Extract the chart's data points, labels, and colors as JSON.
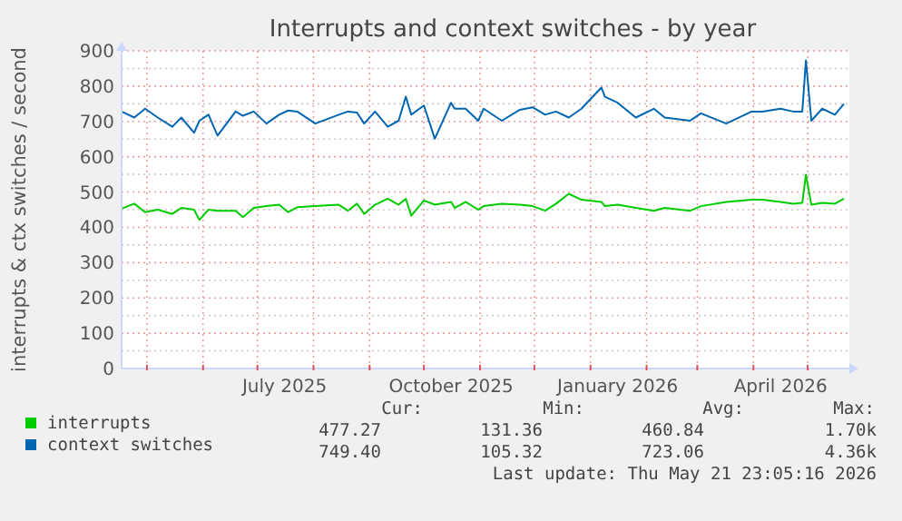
{
  "chart_data": {
    "type": "line",
    "title": "Interrupts and context switches - by year",
    "ylabel": "interrupts & ctx switches / second",
    "x": [
      "2025-04-17",
      "2025-04-24",
      "2025-04-30",
      "2025-05-07",
      "2025-05-15",
      "2025-05-20",
      "2025-05-27",
      "2025-05-30",
      "2025-06-04",
      "2025-06-09",
      "2025-06-19",
      "2025-06-23",
      "2025-06-29",
      "2025-07-06",
      "2025-07-13",
      "2025-07-18",
      "2025-07-23",
      "2025-08-02",
      "2025-08-15",
      "2025-08-20",
      "2025-08-25",
      "2025-08-29",
      "2025-09-04",
      "2025-09-11",
      "2025-09-17",
      "2025-09-21",
      "2025-09-24",
      "2025-10-01",
      "2025-10-07",
      "2025-10-16",
      "2025-10-18",
      "2025-10-24",
      "2025-10-31",
      "2025-11-03",
      "2025-11-13",
      "2025-11-23",
      "2025-11-30",
      "2025-12-07",
      "2025-12-13",
      "2025-12-20",
      "2025-12-27",
      "2026-01-07",
      "2026-01-09",
      "2026-01-16",
      "2026-01-26",
      "2026-02-05",
      "2026-02-11",
      "2026-02-25",
      "2026-03-03",
      "2026-03-17",
      "2026-03-31",
      "2026-04-06",
      "2026-04-16",
      "2026-04-23",
      "2026-04-28",
      "2026-04-30",
      "2026-05-03",
      "2026-05-09",
      "2026-05-16",
      "2026-05-21"
    ],
    "series": [
      {
        "name": "interrupts",
        "color": "#00cc00",
        "values": [
          453,
          467,
          443,
          450,
          438,
          455,
          450,
          421,
          450,
          447,
          447,
          429,
          455,
          460,
          464,
          443,
          457,
          460,
          464,
          447,
          467,
          438,
          464,
          481,
          464,
          481,
          433,
          476,
          464,
          472,
          455,
          472,
          450,
          460,
          467,
          464,
          460,
          447,
          467,
          495,
          478,
          472,
          460,
          464,
          455,
          447,
          455,
          447,
          460,
          472,
          478,
          478,
          472,
          467,
          469,
          549,
          464,
          469,
          467,
          481
        ]
      },
      {
        "name": "context switches",
        "color": "#0066b3",
        "values": [
          728,
          711,
          736,
          711,
          685,
          711,
          668,
          702,
          719,
          660,
          728,
          716,
          728,
          694,
          719,
          731,
          728,
          694,
          719,
          728,
          725,
          694,
          728,
          685,
          702,
          770,
          719,
          745,
          651,
          753,
          736,
          736,
          702,
          736,
          702,
          733,
          740,
          719,
          728,
          711,
          736,
          796,
          770,
          753,
          711,
          736,
          711,
          702,
          723,
          694,
          728,
          728,
          736,
          728,
          728,
          873,
          702,
          736,
          719,
          750
        ]
      }
    ],
    "xlim": [
      "2025-04-17",
      "2026-05-24"
    ],
    "xticks": [
      {
        "value": "2025-05-01",
        "label": null
      },
      {
        "value": "2025-06-01",
        "label": null
      },
      {
        "value": "2025-07-01",
        "label": null
      },
      {
        "value": "2025-07-16",
        "label": "July 2025"
      },
      {
        "value": "2025-08-01",
        "label": null
      },
      {
        "value": "2025-09-01",
        "label": null
      },
      {
        "value": "2025-10-01",
        "label": null
      },
      {
        "value": "2025-10-16",
        "label": "October 2025"
      },
      {
        "value": "2025-11-01",
        "label": null
      },
      {
        "value": "2025-12-01",
        "label": null
      },
      {
        "value": "2026-01-01",
        "label": null
      },
      {
        "value": "2026-01-16",
        "label": "January 2026"
      },
      {
        "value": "2026-02-01",
        "label": null
      },
      {
        "value": "2026-03-01",
        "label": null
      },
      {
        "value": "2026-04-01",
        "label": null
      },
      {
        "value": "2026-04-16",
        "label": "April 2026"
      },
      {
        "value": "2026-05-01",
        "label": null
      }
    ],
    "ylim": [
      0,
      900
    ],
    "yticks": [
      0,
      100,
      200,
      300,
      400,
      500,
      600,
      700,
      800,
      900
    ],
    "grid": true,
    "legend": "bottom",
    "line_style": "solid",
    "annotations": [
      "Cur:",
      "Min:",
      "Avg:",
      "Max:",
      "477.27",
      "131.36",
      "460.84",
      "1.70k",
      "749.40",
      "105.32",
      "723.06",
      "4.36k",
      "Last update: Thu May 21 23:05:16 2026"
    ]
  }
}
